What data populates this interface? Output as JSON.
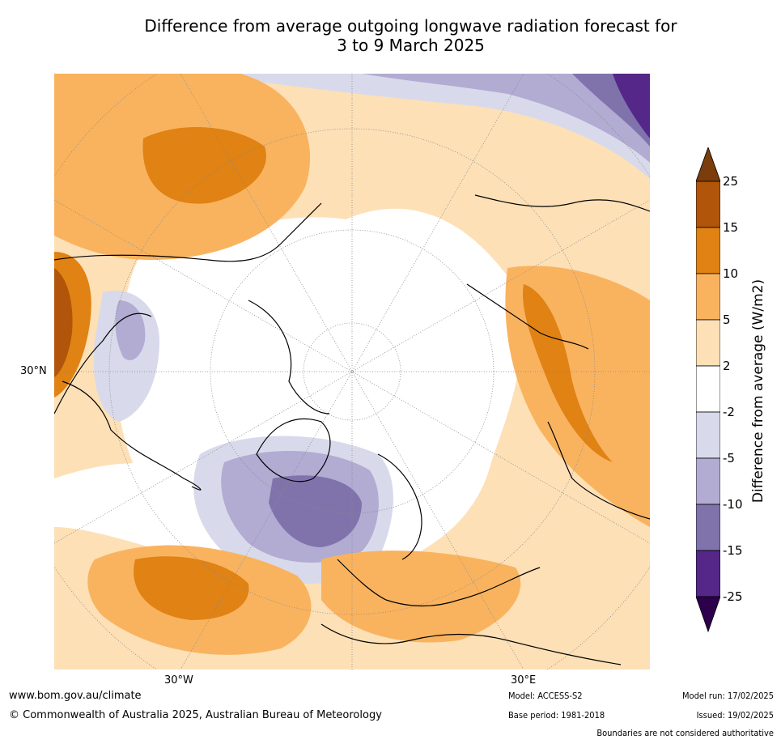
{
  "title_line1": "Difference from average outgoing longwave radiation forecast for",
  "title_line2": "3 to 9 March 2025",
  "map": {
    "lat_label": "30°N",
    "lon_label_west": "30°W",
    "lon_label_east": "30°E",
    "projection": "north-polar-stereographic"
  },
  "colorbar": {
    "label": "Difference from average (W/m2)",
    "ticks": [
      "25",
      "15",
      "10",
      "5",
      "2",
      "-2",
      "-5",
      "-10",
      "-15",
      "-25"
    ],
    "colors": {
      "above_25": "#7a3d0b",
      "c15_25": "#b05509",
      "c10_15": "#e08214",
      "c5_10": "#f9b35f",
      "c2_5": "#fde0b6",
      "cm2_2": "#ffffff",
      "cm5_m2": "#d8daeb",
      "cm10_m5": "#b2abd2",
      "cm15_m10": "#8073ac",
      "cm25_m15": "#542788",
      "below_m25": "#2d004b"
    }
  },
  "footer": {
    "website": "www.bom.gov.au/climate",
    "copyright": "© Commonwealth of Australia 2025, Australian Bureau of Meteorology",
    "model": "Model: ACCESS-S2",
    "base_period": "Base period: 1981-2018",
    "model_run": "Model run: 17/02/2025",
    "issued": "Issued: 19/02/2025",
    "disclaimer": "Boundaries are not considered authoritative"
  }
}
